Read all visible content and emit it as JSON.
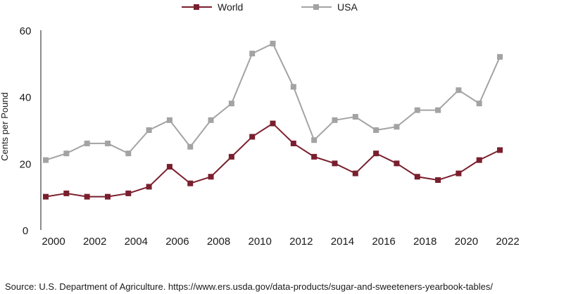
{
  "chart_data": {
    "type": "line",
    "title": "",
    "xlabel": "",
    "ylabel": "Cents per Pound",
    "x": [
      2000,
      2001,
      2002,
      2003,
      2004,
      2005,
      2006,
      2007,
      2008,
      2009,
      2010,
      2011,
      2012,
      2013,
      2014,
      2015,
      2016,
      2017,
      2018,
      2019,
      2020,
      2021,
      2022
    ],
    "xticks": [
      "2000",
      "2002",
      "2004",
      "2006",
      "2008",
      "2010",
      "2012",
      "2014",
      "2016",
      "2018",
      "2020",
      "2022"
    ],
    "yticks": [
      "0",
      "20",
      "40",
      "60"
    ],
    "xlim": [
      2000,
      2022
    ],
    "ylim": [
      0,
      60
    ],
    "grid": false,
    "legend_position": "top-center",
    "series": [
      {
        "name": "World",
        "color": "#7a1f2e",
        "marker": "square",
        "values": [
          10,
          11,
          10,
          10,
          11,
          13,
          19,
          14,
          16,
          22,
          28,
          32,
          26,
          22,
          20,
          17,
          23,
          20,
          16,
          15,
          17,
          21,
          24
        ]
      },
      {
        "name": "USA",
        "color": "#a3a3a3",
        "marker": "square",
        "values": [
          21,
          23,
          26,
          26,
          23,
          30,
          33,
          25,
          33,
          38,
          53,
          56,
          43,
          27,
          33,
          34,
          30,
          31,
          36,
          36,
          42,
          38,
          52
        ]
      }
    ]
  },
  "source": "Source: U.S. Department of Agriculture. https://www.ers.usda.gov/data-products/sugar-and-sweeteners-yearbook-tables/"
}
